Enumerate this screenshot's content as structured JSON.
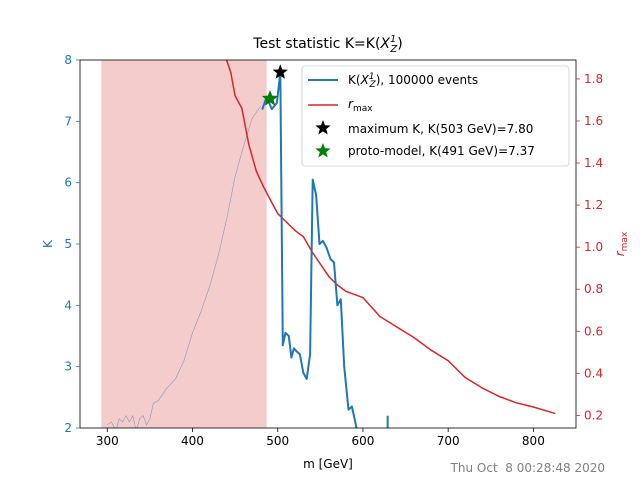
{
  "chart_data": {
    "type": "line",
    "title": "Test statistic K=K(X_Z^1)",
    "title_prefix": "Test statistic K=K(",
    "title_var": "X",
    "title_sub": "Z",
    "title_sup": "1",
    "title_suffix": ")",
    "xlabel": "m [GeV]",
    "ylabel_left": "K",
    "ylabel_right": "r_max",
    "xlim": [
      268,
      850
    ],
    "ylim_left": [
      2,
      8
    ],
    "ylim_right": [
      0.14,
      1.89
    ],
    "x_ticks": [
      300,
      400,
      500,
      600,
      700,
      800
    ],
    "y_left_ticks": [
      2,
      3,
      4,
      5,
      6,
      7,
      8
    ],
    "y_right_ticks": [
      0.2,
      0.4,
      0.6,
      0.8,
      1.0,
      1.2,
      1.4,
      1.6,
      1.8
    ],
    "y_right_tick_labels": [
      "0.2",
      "0.4",
      "0.6",
      "0.8",
      "1.0",
      "1.2",
      "1.4",
      "1.6",
      "1.8"
    ],
    "colors": {
      "k_series": "#1f77b4",
      "rmax": "#d62728",
      "shade": "#f4cccc",
      "thin": "#8899bb",
      "proto": "#008000"
    },
    "shaded_region": {
      "x_start": 293,
      "x_end": 487
    },
    "series": [
      {
        "name": "K(X_Z^1), 100000 events",
        "legend_prefix": "K(",
        "legend_suffix": "), 100000 events",
        "axis": "left",
        "x": [
          482,
          487,
          493,
          499,
          503,
          506,
          509,
          513,
          516,
          519,
          522,
          526,
          530,
          534,
          538,
          541,
          545,
          549,
          553,
          557,
          562,
          566,
          570,
          574,
          578,
          583,
          587,
          591,
          595,
          599,
          603
        ],
        "y": [
          7.2,
          7.4,
          7.2,
          7.3,
          7.8,
          3.35,
          3.55,
          3.5,
          3.15,
          3.3,
          3.25,
          3.2,
          2.9,
          2.8,
          3.2,
          6.05,
          5.8,
          5.0,
          5.05,
          4.95,
          4.75,
          4.7,
          4.0,
          4.1,
          3.0,
          2.3,
          2.35,
          2.1,
          1.8,
          1.7,
          1.5
        ]
      },
      {
        "name": "r_max",
        "axis": "right",
        "x": [
          440,
          445,
          450,
          458,
          466,
          475,
          483,
          492,
          500,
          510,
          520,
          530,
          540,
          550,
          560,
          570,
          580,
          600,
          620,
          640,
          660,
          680,
          700,
          720,
          740,
          760,
          780,
          800,
          825
        ],
        "y": [
          1.89,
          1.83,
          1.72,
          1.66,
          1.49,
          1.36,
          1.29,
          1.22,
          1.16,
          1.12,
          1.08,
          1.05,
          0.98,
          0.92,
          0.86,
          0.82,
          0.79,
          0.76,
          0.67,
          0.62,
          0.57,
          0.51,
          0.46,
          0.38,
          0.33,
          0.29,
          0.26,
          0.24,
          0.21
        ]
      },
      {
        "name": "thin trace",
        "axis": "left",
        "x": [
          300,
          305,
          310,
          314,
          318,
          322,
          326,
          330,
          334,
          338,
          342,
          346,
          350,
          354,
          360,
          370,
          380,
          390,
          400,
          410,
          420,
          430,
          440,
          450,
          460,
          470,
          480
        ],
        "y": [
          2.05,
          2.1,
          1.95,
          2.15,
          2.1,
          2.2,
          2.1,
          2.2,
          1.95,
          2.15,
          2.2,
          2.05,
          2.15,
          2.4,
          2.45,
          2.65,
          2.8,
          3.1,
          3.55,
          3.9,
          4.3,
          4.8,
          5.4,
          6.1,
          6.6,
          7.05,
          7.25
        ]
      }
    ],
    "spike": {
      "x": 629,
      "y_top": 2.2
    },
    "markers": [
      {
        "name": "maximum K, K(503 GeV)=7.80",
        "x": 503,
        "y": 7.8,
        "color": "#000000",
        "symbol": "star"
      },
      {
        "name": "proto-model, K(491 GeV)=7.37",
        "x": 491,
        "y": 7.37,
        "color": "#008000",
        "symbol": "star"
      }
    ],
    "legend_position": "upper right"
  },
  "timestamp": "Thu Oct  8 00:28:48 2020"
}
